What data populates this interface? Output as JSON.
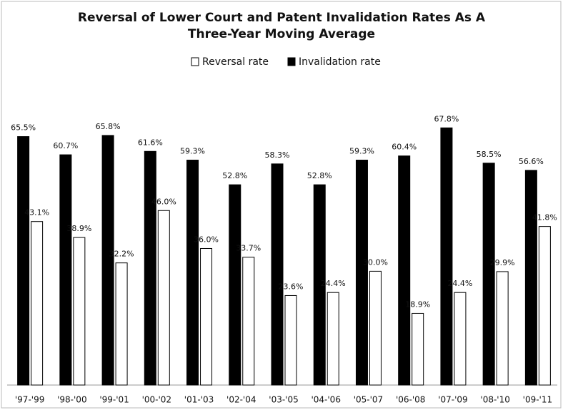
{
  "chart_data": {
    "type": "bar",
    "title": "Reversal of Lower Court and Patent Invalidation Rates As A Three-Year Moving Average",
    "categories": [
      "'97-'99",
      "'98-'00",
      "'99-'01",
      "'00-'02",
      "'01-'03",
      "'02-'04",
      "'03-'05",
      "'04-'06",
      "'05-'07",
      "'06-'08",
      "'07-'09",
      "'08-'10",
      "'09-'11"
    ],
    "series": [
      {
        "name": "Reversal rate",
        "color": "#ffffff",
        "values": [
          43.1,
          38.9,
          32.2,
          46.0,
          36.0,
          33.7,
          23.6,
          24.4,
          30.0,
          18.9,
          24.4,
          29.9,
          41.8
        ],
        "value_labels": [
          "43.1%",
          "38.9%",
          "32.2%",
          "46.0%",
          "36.0%",
          "33.7%",
          "23.6%",
          "24.4%",
          "30.0%",
          "18.9%",
          "24.4%",
          "29.9%",
          "41.8%"
        ]
      },
      {
        "name": "Invalidation rate",
        "color": "#000000",
        "values": [
          65.5,
          60.7,
          65.8,
          61.6,
          59.3,
          52.8,
          58.3,
          52.8,
          59.3,
          60.4,
          67.8,
          58.5,
          56.6
        ],
        "value_labels": [
          "65.5%",
          "60.7%",
          "65.8%",
          "61.6%",
          "59.3%",
          "52.8%",
          "58.3%",
          "52.8%",
          "59.3%",
          "60.4%",
          "67.8%",
          "58.5%",
          "56.6%"
        ]
      }
    ],
    "legend": "top"
  }
}
